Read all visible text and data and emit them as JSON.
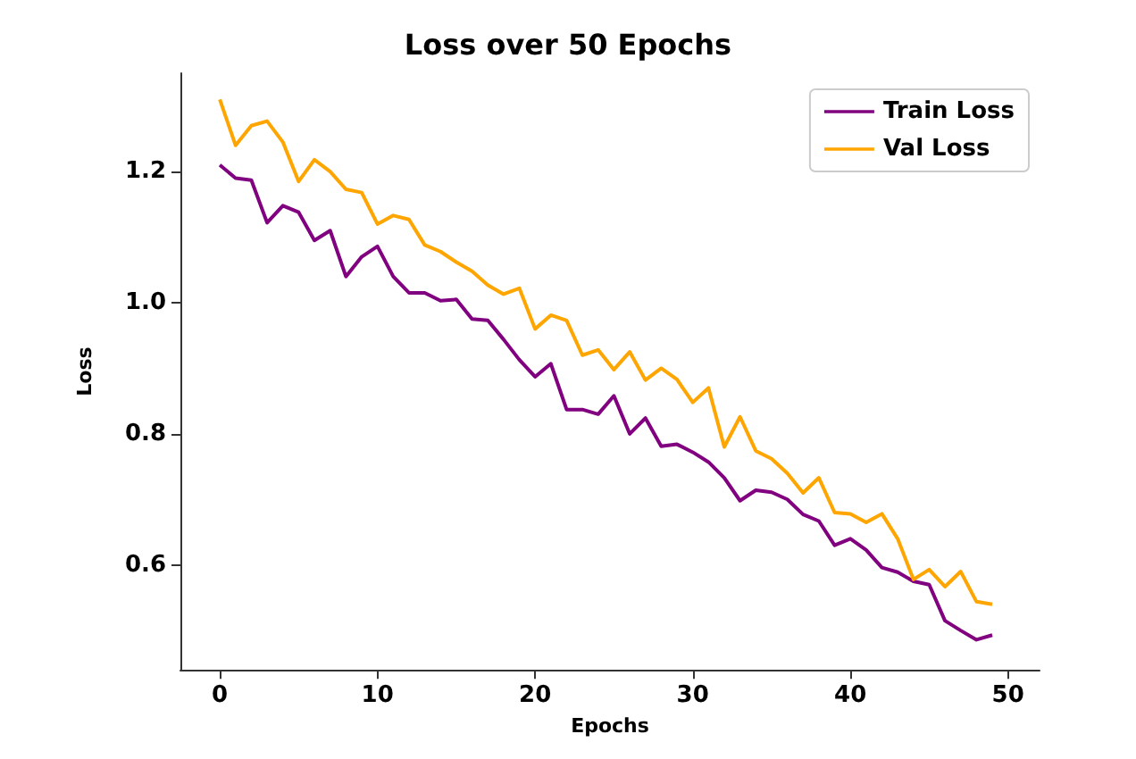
{
  "chart_data": {
    "type": "line",
    "title": "Loss over 50 Epochs",
    "xlabel": "Epochs",
    "ylabel": "Loss",
    "x": [
      0,
      1,
      2,
      3,
      4,
      5,
      6,
      7,
      8,
      9,
      10,
      11,
      12,
      13,
      14,
      15,
      16,
      17,
      18,
      19,
      20,
      21,
      22,
      23,
      24,
      25,
      26,
      27,
      28,
      29,
      30,
      31,
      32,
      33,
      34,
      35,
      36,
      37,
      38,
      39,
      40,
      41,
      42,
      43,
      44,
      45,
      46,
      47,
      48,
      49
    ],
    "series": [
      {
        "name": "Train Loss",
        "color": "#800080",
        "values": [
          1.21,
          1.19,
          1.187,
          1.122,
          1.148,
          1.138,
          1.095,
          1.11,
          1.04,
          1.07,
          1.086,
          1.04,
          1.015,
          1.015,
          1.003,
          1.005,
          0.975,
          0.973,
          0.944,
          0.913,
          0.887,
          0.907,
          0.837,
          0.837,
          0.83,
          0.858,
          0.8,
          0.824,
          0.781,
          0.784,
          0.772,
          0.757,
          0.733,
          0.698,
          0.714,
          0.711,
          0.7,
          0.677,
          0.667,
          0.63,
          0.64,
          0.623,
          0.596,
          0.589,
          0.575,
          0.57,
          0.515,
          0.5,
          0.486,
          0.493
        ]
      },
      {
        "name": "Val Loss",
        "color": "#ffa500",
        "values": [
          1.31,
          1.24,
          1.27,
          1.277,
          1.245,
          1.185,
          1.218,
          1.2,
          1.173,
          1.168,
          1.12,
          1.133,
          1.127,
          1.088,
          1.078,
          1.062,
          1.048,
          1.027,
          1.013,
          1.022,
          0.96,
          0.981,
          0.973,
          0.92,
          0.928,
          0.898,
          0.925,
          0.882,
          0.9,
          0.883,
          0.848,
          0.87,
          0.78,
          0.826,
          0.774,
          0.762,
          0.74,
          0.71,
          0.733,
          0.68,
          0.678,
          0.665,
          0.678,
          0.64,
          0.578,
          0.593,
          0.567,
          0.59,
          0.544,
          0.54
        ]
      }
    ],
    "xlim": [
      -2.5,
      52
    ],
    "xticks": [
      0,
      10,
      20,
      30,
      40,
      50
    ],
    "ylim": [
      0.44,
      1.35
    ],
    "yticks": [
      0.6,
      0.8,
      {
        "value": 1,
        "label": "1.0"
      },
      1.2
    ],
    "grid": false,
    "legend": "top right",
    "marker": "none",
    "line_style": "solid"
  }
}
